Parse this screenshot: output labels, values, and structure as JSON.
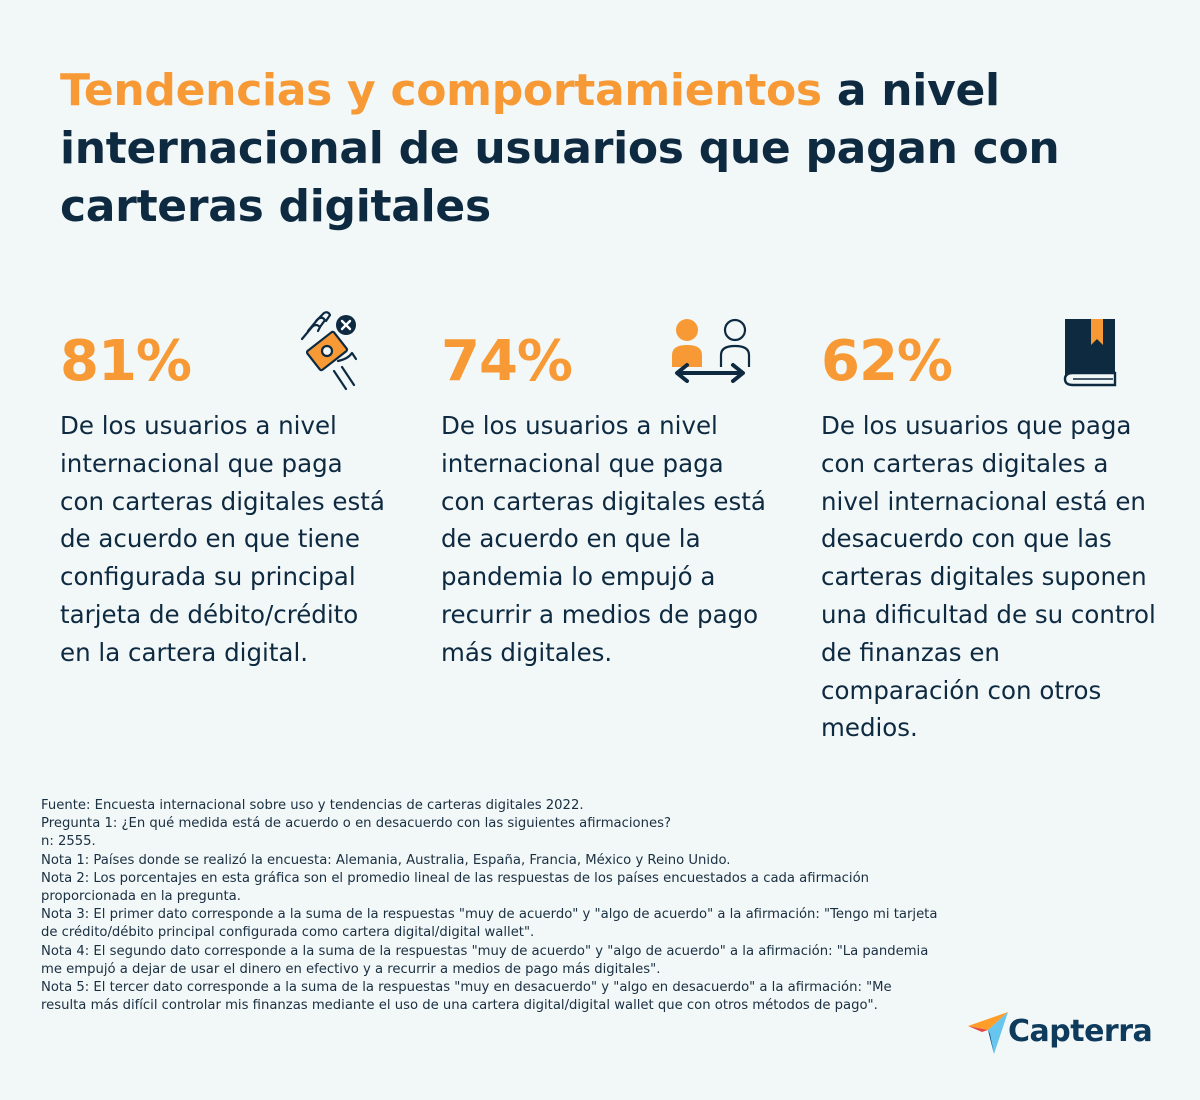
{
  "title": {
    "highlight": "Tendencias y comportamientos",
    "rest": " a nivel internacional de usuarios que pagan con carteras digitales"
  },
  "stats": [
    {
      "value": "81%",
      "icon": "hand-card-icon",
      "text": "De los usuarios a nivel internacional que paga con carteras digitales está de acuerdo en que tiene configurada su principal tarjeta de débito/crédito en la cartera digital."
    },
    {
      "value": "74%",
      "icon": "people-exchange-icon",
      "text": "De los usuarios a nivel internacional que paga con carteras digitales está de acuerdo en que la pandemia lo empujó a recurrir a medios de pago más digitales."
    },
    {
      "value": "62%",
      "icon": "book-icon",
      "text": "De los usuarios que paga con carteras digitales a nivel internacional está en desacuerdo con que las carteras digitales suponen una dificultad de su control de finanzas en comparación con otros medios."
    }
  ],
  "footnotes": {
    "source": "Fuente:  Encuesta internacional sobre uso y tendencias de carteras digitales 2022.",
    "question": "Pregunta 1: ¿En qué medida está de acuerdo o en desacuerdo con las siguientes afirmaciones?",
    "n": "n: 2555.",
    "note1": "Nota 1: Países donde se realizó la encuesta: Alemania, Australia, España, Francia, México y Reino Unido.",
    "note2": "Nota 2: Los porcentajes en esta gráfica son el promedio lineal de las respuestas de los países encuestados a cada afirmación proporcionada en la pregunta.",
    "note3": "Nota 3: El primer dato corresponde a la suma de la respuestas \"muy de acuerdo\" y \"algo de acuerdo\" a la afirmación: \"Tengo mi tarjeta de crédito/débito principal configurada como cartera digital/digital wallet\".",
    "note4": "Nota 4: El segundo dato corresponde a la suma de la respuestas \"muy de acuerdo\" y \"algo de acuerdo\" a la afirmación: \"La pandemia me empujó a dejar de usar el dinero en efectivo y a recurrir a medios de pago más digitales\".",
    "note5": "Nota 5: El tercer dato corresponde a la suma de la respuestas \"muy en desacuerdo\" y \"algo en desacuerdo\" a la afirmación: \"Me resulta más difícil controlar mis finanzas mediante el uso de una cartera digital/digital wallet que con otros métodos de pago\"."
  },
  "brand": {
    "name": "Capterra",
    "colors": {
      "navy": "#0e2a40",
      "orange": "#f79a35",
      "background": "#f2f7f8"
    }
  }
}
